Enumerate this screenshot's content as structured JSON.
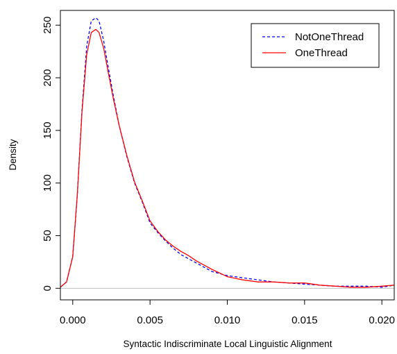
{
  "chart_data": {
    "type": "line",
    "title": "",
    "xlabel": "Syntactic Indiscriminate Local Linguistic Alignment",
    "ylabel": "Density",
    "xlim": [
      -0.0008,
      0.0208
    ],
    "ylim": [
      -11,
      264
    ],
    "xticks": [
      0.0,
      0.005,
      0.01,
      0.015,
      0.02
    ],
    "xtick_labels": [
      "0.000",
      "0.005",
      "0.010",
      "0.015",
      "0.020"
    ],
    "yticks": [
      0,
      50,
      100,
      150,
      200,
      250
    ],
    "ytick_labels": [
      "0",
      "50",
      "100",
      "150",
      "200",
      "250"
    ],
    "baseline": 0,
    "grid": false,
    "legend_position": "top-right",
    "series": [
      {
        "name": "NotOneThread",
        "color": "#0000ff",
        "style": "dashed",
        "x": [
          -0.0008,
          -0.0004,
          0.0,
          0.0003,
          0.0006,
          0.0009,
          0.0012,
          0.0015,
          0.0017,
          0.002,
          0.0023,
          0.0026,
          0.003,
          0.0035,
          0.004,
          0.0045,
          0.005,
          0.0055,
          0.006,
          0.0065,
          0.007,
          0.0075,
          0.008,
          0.009,
          0.01,
          0.011,
          0.012,
          0.013,
          0.014,
          0.015,
          0.016,
          0.017,
          0.018,
          0.019,
          0.02,
          0.0208
        ],
        "y": [
          1,
          6,
          30,
          90,
          170,
          230,
          254,
          257,
          254,
          235,
          210,
          185,
          155,
          125,
          100,
          82,
          62,
          53,
          45,
          38,
          32,
          28,
          24,
          16,
          12,
          10,
          8,
          6,
          5,
          4,
          3,
          2,
          2,
          2,
          1,
          3
        ]
      },
      {
        "name": "OneThread",
        "color": "#ff0000",
        "style": "solid",
        "x": [
          -0.0008,
          -0.0004,
          0.0,
          0.0003,
          0.0006,
          0.0009,
          0.0012,
          0.0015,
          0.0017,
          0.002,
          0.0023,
          0.0026,
          0.003,
          0.0035,
          0.004,
          0.0045,
          0.005,
          0.0055,
          0.006,
          0.0065,
          0.007,
          0.0075,
          0.008,
          0.009,
          0.01,
          0.011,
          0.012,
          0.013,
          0.014,
          0.015,
          0.016,
          0.017,
          0.018,
          0.019,
          0.02,
          0.0208
        ],
        "y": [
          1,
          6,
          30,
          90,
          168,
          222,
          243,
          246,
          243,
          228,
          205,
          182,
          155,
          126,
          101,
          83,
          64,
          54,
          46,
          40,
          35,
          31,
          26,
          18,
          11,
          8,
          6,
          6,
          5,
          5,
          3,
          2,
          1,
          1,
          2,
          3
        ]
      }
    ]
  }
}
